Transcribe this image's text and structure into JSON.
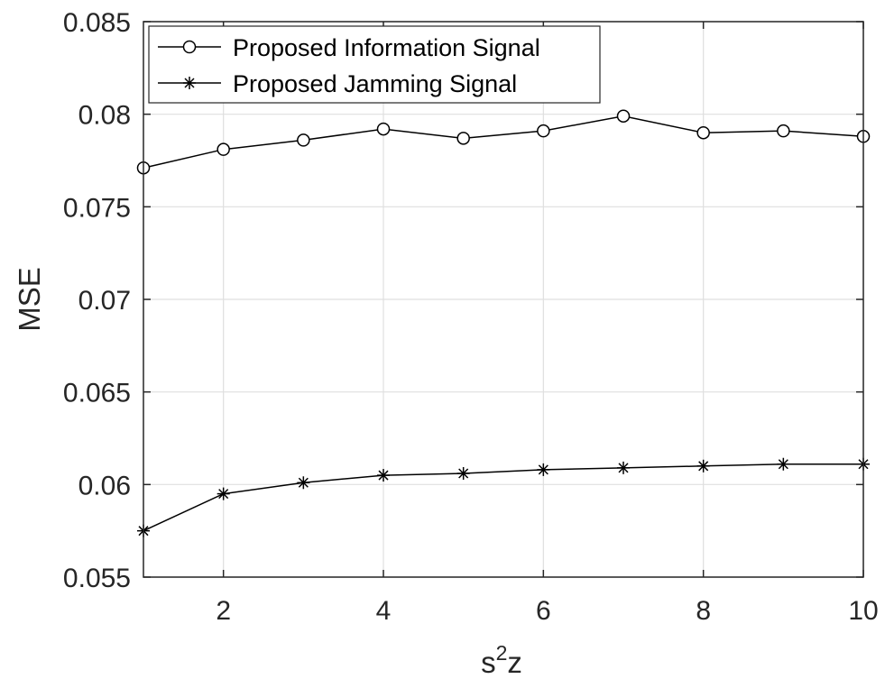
{
  "chart_data": {
    "type": "line",
    "title": "",
    "xlabel": {
      "base": "s",
      "sup": "2",
      "sub": "z"
    },
    "ylabel": "MSE",
    "xlim": [
      1,
      10
    ],
    "ylim": [
      0.055,
      0.085
    ],
    "xticks": [
      2,
      4,
      6,
      8,
      10
    ],
    "xtick_labels": [
      "2",
      "4",
      "6",
      "8",
      "10"
    ],
    "yticks": [
      0.055,
      0.06,
      0.065,
      0.07,
      0.075,
      0.08,
      0.085
    ],
    "ytick_labels": [
      "0.055",
      "0.06",
      "0.065",
      "0.07",
      "0.075",
      "0.08",
      "0.085"
    ],
    "grid": true,
    "legend_position": "top-left",
    "x": [
      1,
      2,
      3,
      4,
      5,
      6,
      7,
      8,
      9,
      10
    ],
    "series": [
      {
        "name": "Proposed Information Signal",
        "marker": "circle",
        "color": "#000000",
        "values": [
          0.0771,
          0.0781,
          0.0786,
          0.0792,
          0.0787,
          0.0791,
          0.0799,
          0.079,
          0.0791,
          0.0788
        ]
      },
      {
        "name": "Proposed Jamming Signal",
        "marker": "star",
        "color": "#000000",
        "values": [
          0.0575,
          0.0595,
          0.0601,
          0.0605,
          0.0606,
          0.0608,
          0.0609,
          0.061,
          0.0611,
          0.0611
        ]
      }
    ]
  }
}
